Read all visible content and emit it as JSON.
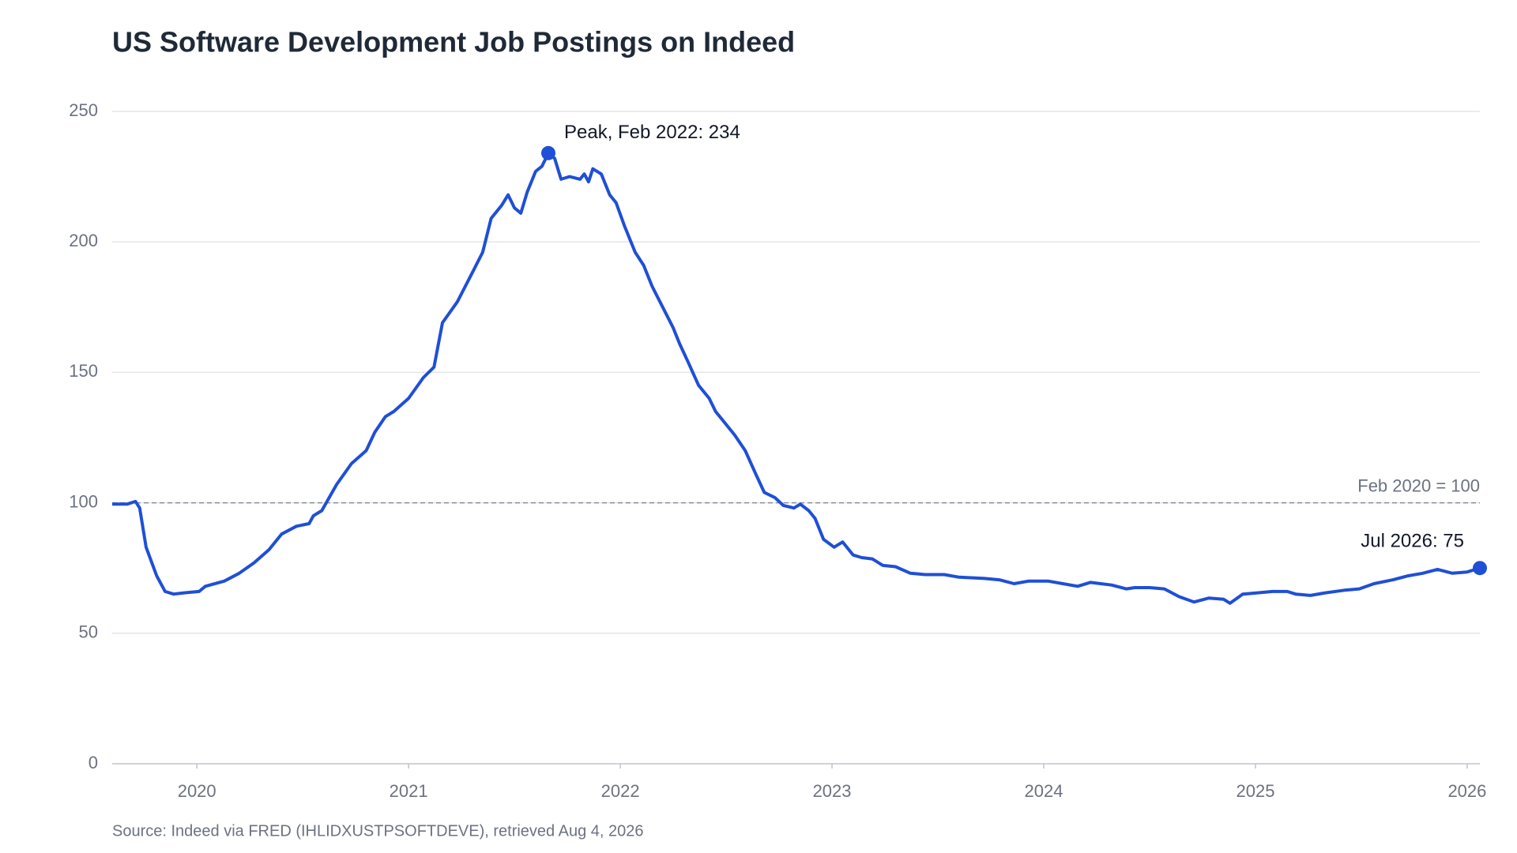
{
  "chart_data": {
    "type": "line",
    "title": "US Software Development Job Postings on Indeed",
    "source": "Source: Indeed via FRED (IHLIDXUSTPSOFTDEVE), retrieved Aug 4, 2026",
    "x": [
      2019.6,
      2019.67,
      2019.71,
      2019.73,
      2019.76,
      2019.81,
      2019.85,
      2019.89,
      2019.94,
      2020.01,
      2020.04,
      2020.13,
      2020.2,
      2020.27,
      2020.34,
      2020.4,
      2020.47,
      2020.53,
      2020.55,
      2020.59,
      2020.66,
      2020.73,
      2020.8,
      2020.84,
      2020.89,
      2020.93,
      2021.0,
      2021.07,
      2021.12,
      2021.16,
      2021.23,
      2021.3,
      2021.35,
      2021.39,
      2021.44,
      2021.47,
      2021.5,
      2021.53,
      2021.56,
      2021.6,
      2021.63,
      2021.66,
      2021.69,
      2021.72,
      2021.76,
      2021.81,
      2021.83,
      2021.85,
      2021.87,
      2021.91,
      2021.95,
      2021.98,
      2022.02,
      2022.07,
      2022.11,
      2022.15,
      2022.2,
      2022.25,
      2022.28,
      2022.32,
      2022.37,
      2022.42,
      2022.45,
      2022.5,
      2022.54,
      2022.59,
      2022.64,
      2022.68,
      2022.73,
      2022.77,
      2022.82,
      2022.85,
      2022.89,
      2022.92,
      2022.96,
      2023.01,
      2023.05,
      2023.1,
      2023.14,
      2023.19,
      2023.24,
      2023.3,
      2023.37,
      2023.44,
      2023.53,
      2023.6,
      2023.72,
      2023.79,
      2023.86,
      2023.93,
      2024.02,
      2024.09,
      2024.16,
      2024.22,
      2024.32,
      2024.39,
      2024.43,
      2024.5,
      2024.57,
      2024.64,
      2024.71,
      2024.78,
      2024.85,
      2024.88,
      2024.94,
      2025.01,
      2025.08,
      2025.15,
      2025.19,
      2025.26,
      2025.33,
      2025.42,
      2025.49,
      2025.56,
      2025.65,
      2025.72,
      2025.79,
      2025.86,
      2025.93,
      2026.0,
      2026.06
    ],
    "series": [
      {
        "name": "Software Development",
        "color": "#1f4fd6",
        "values": [
          99.5,
          99.5,
          100.5,
          98,
          83,
          72,
          66,
          65,
          65.5,
          66,
          68,
          70,
          73,
          77,
          82,
          88,
          91,
          92,
          95,
          97,
          107,
          115,
          120,
          127,
          133,
          135,
          140,
          148,
          152,
          169,
          177,
          188,
          196,
          209,
          214,
          218,
          213,
          211,
          219,
          227,
          229,
          234,
          232,
          224,
          225,
          224,
          226,
          223,
          228,
          226,
          218,
          215,
          206,
          196,
          191,
          183,
          175,
          167,
          161,
          154,
          145,
          140,
          135,
          130,
          126,
          120,
          111,
          104,
          102,
          99,
          98,
          99.5,
          97,
          94,
          86,
          83,
          85,
          80,
          79,
          78.5,
          76,
          75.5,
          73,
          72.5,
          72.5,
          71.5,
          71,
          70.5,
          69,
          70,
          70,
          69,
          68,
          69.5,
          68.5,
          67,
          67.5,
          67.5,
          67,
          64,
          62,
          63.5,
          63,
          61.5,
          65,
          65.5,
          66,
          66,
          65,
          64.5,
          65.5,
          66.5,
          67,
          69,
          70.5,
          72,
          73,
          74.5,
          73,
          73.5,
          75
        ]
      }
    ],
    "xlim": [
      2019.6,
      2026.06
    ],
    "xticks": [
      2020,
      2021,
      2022,
      2023,
      2024,
      2025,
      2026
    ],
    "ylim": [
      0,
      250
    ],
    "yticks": [
      0,
      50,
      100,
      150,
      200,
      250
    ],
    "grid": true,
    "reference_line": {
      "y": 100,
      "label": "Feb 2020 = 100"
    },
    "annotations": [
      {
        "text": "Peak, Feb 2022: 234",
        "x": 2021.66,
        "y": 234
      },
      {
        "text": "Jul 2026: 75",
        "x": 2026.06,
        "y": 75
      }
    ]
  }
}
